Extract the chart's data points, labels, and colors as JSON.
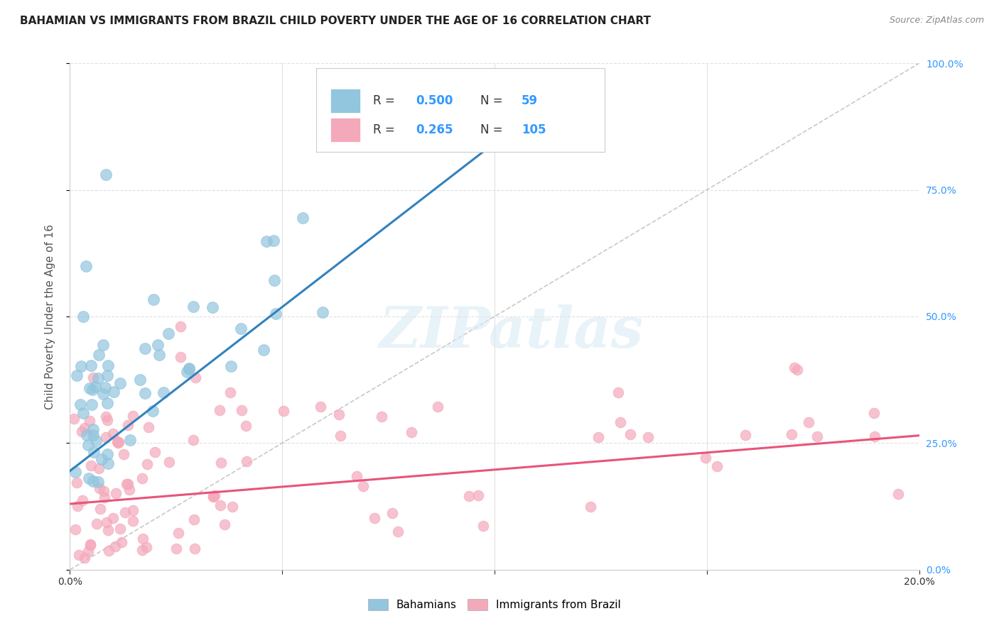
{
  "title": "BAHAMIAN VS IMMIGRANTS FROM BRAZIL CHILD POVERTY UNDER THE AGE OF 16 CORRELATION CHART",
  "source": "Source: ZipAtlas.com",
  "ylabel_left": "Child Poverty Under the Age of 16",
  "legend_label1": "Bahamians",
  "legend_label2": "Immigrants from Brazil",
  "R1": "0.500",
  "N1": "59",
  "R2": "0.265",
  "N2": "105",
  "color_blue": "#92c5de",
  "color_pink": "#f4a9bb",
  "line_blue": "#3182bd",
  "line_pink": "#e8547a",
  "line_ref_color": "#bbbbbb",
  "watermark": "ZIPatlas",
  "xmin": 0.0,
  "xmax": 0.2,
  "ymin": 0.0,
  "ymax": 1.0,
  "blue_line_x": [
    0.0,
    0.105
  ],
  "blue_line_y": [
    0.195,
    0.875
  ],
  "pink_line_x": [
    0.0,
    0.2
  ],
  "pink_line_y": [
    0.13,
    0.265
  ],
  "ref_line_x": [
    0.0,
    0.2
  ],
  "ref_line_y": [
    0.0,
    1.0
  ],
  "yticks": [
    0.0,
    0.25,
    0.5,
    0.75,
    1.0
  ],
  "ytick_labels": [
    "0.0%",
    "25.0%",
    "50.0%",
    "75.0%",
    "100.0%"
  ],
  "xticks": [
    0.0,
    0.05,
    0.1,
    0.15,
    0.2
  ],
  "xtick_labels_show": [
    "0.0%",
    "",
    "",
    "",
    "20.0%"
  ],
  "grid_color": "#e0e0e0",
  "right_axis_color": "#3399ff",
  "title_fontsize": 11,
  "label_fontsize": 11,
  "tick_fontsize": 10
}
